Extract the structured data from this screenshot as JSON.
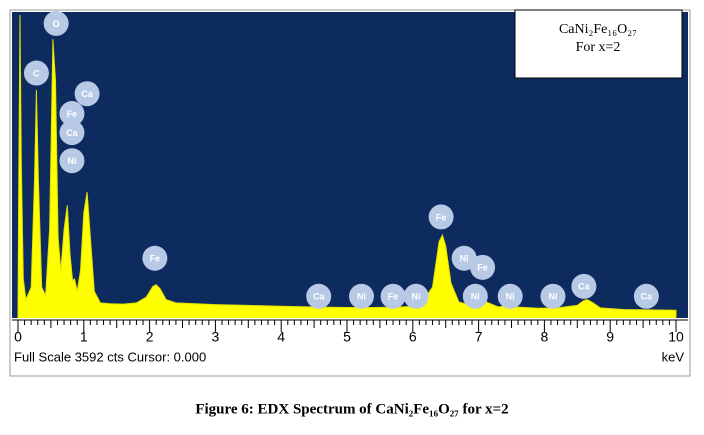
{
  "chart_data": {
    "type": "area",
    "legend_lines": [
      "CaNi₂Fe₁₆O₂₇",
      "For x=2"
    ],
    "caption": "Figure 6: EDX Spectrum of CaNi₂Fe₁₆O₂₇ for x=2",
    "footer_text": "Full Scale 3592 cts Cursor: 0.000",
    "x_label": "keV",
    "color": "#ffff00",
    "xlim": [
      0,
      10
    ],
    "xticks": [
      0,
      1,
      2,
      3,
      4,
      5,
      6,
      7,
      8,
      9,
      10
    ],
    "ylim": [
      0,
      3592
    ],
    "x": [
      0,
      0.01,
      0.03,
      0.05,
      0.08,
      0.12,
      0.2,
      0.25,
      0.28,
      0.31,
      0.36,
      0.42,
      0.48,
      0.53,
      0.57,
      0.61,
      0.65,
      0.7,
      0.75,
      0.79,
      0.83,
      0.86,
      0.9,
      0.95,
      1.0,
      1.05,
      1.1,
      1.16,
      1.25,
      1.4,
      1.6,
      1.8,
      1.95,
      2.05,
      2.1,
      2.16,
      2.25,
      2.4,
      2.7,
      3.0,
      3.5,
      4.0,
      4.5,
      5.0,
      5.4,
      5.8,
      6.1,
      6.3,
      6.4,
      6.45,
      6.5,
      6.58,
      6.7,
      6.9,
      7.0,
      7.06,
      7.12,
      7.3,
      7.45,
      7.5,
      7.58,
      7.9,
      8.2,
      8.5,
      8.6,
      8.65,
      8.72,
      8.85,
      9.2,
      9.6,
      10.0
    ],
    "values": [
      0,
      1500,
      3592,
      1800,
      400,
      150,
      300,
      1600,
      2685,
      1600,
      300,
      200,
      1000,
      3300,
      2800,
      900,
      500,
      1000,
      1290,
      700,
      380,
      400,
      250,
      500,
      1200,
      1450,
      900,
      250,
      110,
      100,
      95,
      110,
      180,
      310,
      330,
      280,
      150,
      110,
      100,
      90,
      80,
      70,
      60,
      55,
      55,
      60,
      70,
      300,
      850,
      930,
      800,
      350,
      120,
      80,
      110,
      170,
      120,
      60,
      80,
      90,
      60,
      45,
      50,
      80,
      140,
      150,
      120,
      50,
      30,
      25,
      20
    ],
    "annotations": [
      {
        "label": "C",
        "x": 0.28,
        "y": 2890
      },
      {
        "label": "O",
        "x": 0.58,
        "y": 3490
      },
      {
        "label": "Ca",
        "x": 1.05,
        "y": 2640
      },
      {
        "label": "Fe",
        "x": 0.82,
        "y": 2400
      },
      {
        "label": "Ca",
        "x": 0.82,
        "y": 2170
      },
      {
        "label": "Ni",
        "x": 0.82,
        "y": 1830
      },
      {
        "label": "Fe",
        "x": 2.08,
        "y": 650
      },
      {
        "label": "Ca",
        "x": 4.57,
        "y": 190
      },
      {
        "label": "Ni",
        "x": 5.22,
        "y": 190
      },
      {
        "label": "Fe",
        "x": 5.7,
        "y": 190
      },
      {
        "label": "Ni",
        "x": 6.05,
        "y": 190
      },
      {
        "label": "Fe",
        "x": 6.43,
        "y": 1150
      },
      {
        "label": "Ni",
        "x": 6.78,
        "y": 650
      },
      {
        "label": "Fe",
        "x": 7.06,
        "y": 540
      },
      {
        "label": "Ni",
        "x": 6.95,
        "y": 190
      },
      {
        "label": "Ni",
        "x": 7.48,
        "y": 190
      },
      {
        "label": "Ni",
        "x": 8.13,
        "y": 190
      },
      {
        "label": "Ca",
        "x": 8.6,
        "y": 310
      },
      {
        "label": "Ca",
        "x": 9.55,
        "y": 190
      }
    ]
  }
}
